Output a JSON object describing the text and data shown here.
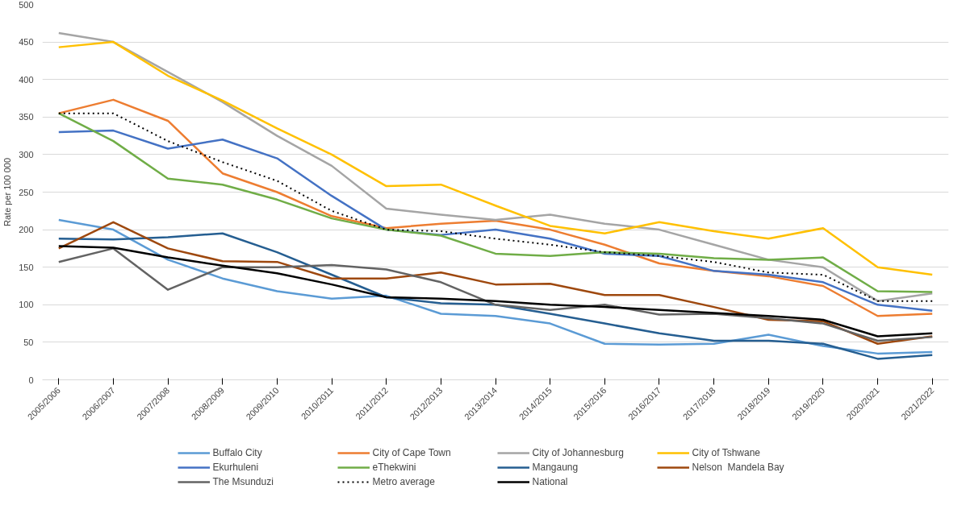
{
  "chart_data": {
    "type": "line",
    "ylabel": "Rate per 100 000",
    "categories": [
      "2005/2006",
      "2006/2007",
      "2007/2008",
      "2008/2009",
      "2009/2010",
      "2010/2011",
      "2011/2012",
      "2012/2013",
      "2013/2014",
      "2014/2015",
      "2015/2016",
      "2016/2017",
      "2017/2018",
      "2018/2019",
      "2019/2020",
      "2020/2021",
      "2021/2022"
    ],
    "ylim": [
      0,
      500
    ],
    "yticks": [
      0,
      50,
      100,
      150,
      200,
      250,
      300,
      350,
      400,
      450,
      500
    ],
    "grid": "y",
    "legend": "bottom",
    "marker": "none",
    "series": [
      {
        "name": "Buffalo City",
        "color": "#5b9bd5",
        "values": [
          213,
          200,
          160,
          135,
          118,
          108,
          112,
          88,
          85,
          75,
          48,
          47,
          48,
          60,
          45,
          35,
          37
        ]
      },
      {
        "name": "City of Cape Town",
        "color": "#ed7d31",
        "values": [
          355,
          373,
          345,
          275,
          250,
          218,
          202,
          208,
          212,
          200,
          180,
          155,
          145,
          138,
          125,
          85,
          88
        ]
      },
      {
        "name": "City of Johannesburg",
        "color": "#a5a5a5",
        "values": [
          462,
          450,
          410,
          370,
          325,
          285,
          228,
          220,
          213,
          220,
          208,
          200,
          180,
          160,
          150,
          105,
          115
        ]
      },
      {
        "name": "City of Tshwane",
        "color": "#ffc000",
        "values": [
          443,
          450,
          405,
          372,
          335,
          300,
          258,
          260,
          232,
          205,
          195,
          210,
          198,
          188,
          202,
          150,
          140
        ]
      },
      {
        "name": "Ekurhuleni",
        "color": "#4472c4",
        "values": [
          330,
          332,
          308,
          320,
          295,
          245,
          200,
          193,
          200,
          188,
          168,
          165,
          145,
          140,
          130,
          100,
          92
        ]
      },
      {
        "name": "eThekwini",
        "color": "#70ad47",
        "values": [
          355,
          318,
          268,
          260,
          240,
          215,
          200,
          192,
          168,
          165,
          170,
          168,
          162,
          160,
          163,
          118,
          117
        ]
      },
      {
        "name": "Mangaung",
        "color": "#255e91",
        "values": [
          188,
          187,
          190,
          195,
          170,
          140,
          110,
          102,
          100,
          88,
          75,
          62,
          52,
          52,
          48,
          28,
          33
        ]
      },
      {
        "name": "Nelson  Mandela Bay",
        "color": "#9e480e",
        "values": [
          175,
          210,
          175,
          158,
          157,
          135,
          135,
          143,
          127,
          128,
          113,
          113,
          97,
          80,
          78,
          48,
          58
        ]
      },
      {
        "name": "The Msunduzi",
        "color": "#636363",
        "values": [
          157,
          175,
          120,
          150,
          150,
          153,
          147,
          130,
          100,
          93,
          100,
          87,
          88,
          82,
          75,
          52,
          57
        ]
      },
      {
        "name": "Metro average",
        "color": "#000000",
        "line_style": "dotted",
        "values": [
          355,
          355,
          318,
          290,
          265,
          225,
          200,
          198,
          188,
          180,
          170,
          165,
          157,
          143,
          140,
          105,
          105
        ]
      },
      {
        "name": "National",
        "color": "#000000",
        "values": [
          178,
          176,
          163,
          152,
          142,
          127,
          110,
          108,
          105,
          100,
          97,
          93,
          89,
          85,
          80,
          58,
          62
        ]
      }
    ]
  }
}
